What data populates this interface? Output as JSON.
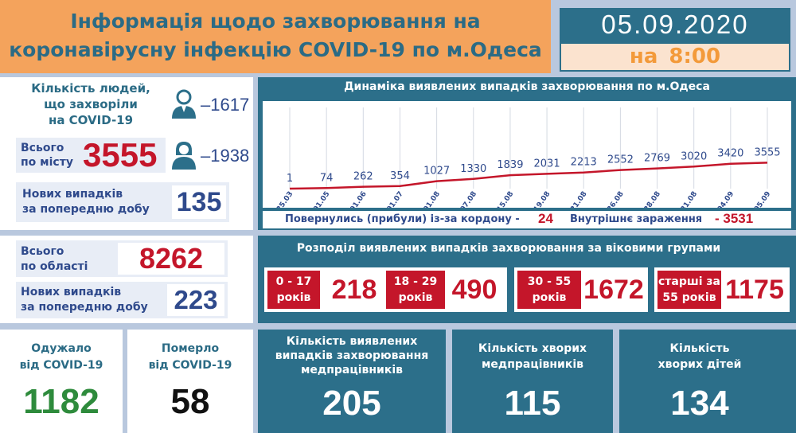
{
  "header": {
    "title_line1": "Інформація щодо захворювання на",
    "title_line2": "коронавірусну інфекцію COVID-19 по м.Одеса",
    "date": "05.09.2020",
    "time_prefix": "на",
    "time": "8:00"
  },
  "city": {
    "sick_label_line1": "Кількість людей,",
    "sick_label_line2": "що захворіли",
    "sick_label_line3": "на COVID-19",
    "male_count": "–1617",
    "female_count": "–1938",
    "total_label_line1": "Всього",
    "total_label_line2": "по місту",
    "total_value": "3555",
    "new_label_line1": "Нових випадків",
    "new_label_line2": "за попередню добу",
    "new_value": "135"
  },
  "region": {
    "total_label_line1": "Всього",
    "total_label_line2": "по області",
    "total_value": "8262",
    "new_label_line1": "Нових випадків",
    "new_label_line2": "за попередню добу",
    "new_value": "223"
  },
  "recovered": {
    "label_line1": "Одужало",
    "label_line2": "від COVID-19",
    "value": "1182"
  },
  "died": {
    "label_line1": "Померло",
    "label_line2": "від COVID-19",
    "value": "58"
  },
  "medical": {
    "detected_line1": "Кількість виявлених",
    "detected_line2": "випадків захворювання",
    "detected_line3": "медпрацівників",
    "detected_value": "205",
    "sick_line1": "Кількість хворих",
    "sick_line2": "медпрацівників",
    "sick_value": "115",
    "children_line1": "Кількість",
    "children_line2": "хворих дітей",
    "children_value": "134"
  },
  "returned": {
    "label": "Повернулись (прибули) із-за кордону -",
    "value": "24",
    "internal_label": "Внутрішнє зараження",
    "internal_value": "- 3531"
  },
  "age_groups": {
    "title": "Розподіл виявлених випадків захворювання за віковими групами",
    "groups": [
      {
        "line1": "0 - 17",
        "line2": "років",
        "value": "218"
      },
      {
        "line1": "18 - 29",
        "line2": "років",
        "value": "490"
      },
      {
        "line1": "30 - 55",
        "line2": "років",
        "value": "1672"
      },
      {
        "line1": "старші за",
        "line2": "55 років",
        "value": "1175"
      }
    ]
  },
  "chart_data": {
    "type": "line",
    "title": "Динаміка виявлених випадків захворювання по м.Одеса",
    "categories": [
      "25.03",
      "01.05",
      "01.06",
      "01.07",
      "01.08",
      "07.08",
      "15.08",
      "19.08",
      "21.08",
      "26.08",
      "28.08",
      "31.08",
      "04.09",
      "05.09"
    ],
    "series": [
      {
        "values": [
          1,
          74,
          262,
          354,
          1027,
          1330,
          1839,
          2031,
          2213,
          2552,
          2769,
          3020,
          3420,
          3555
        ]
      }
    ],
    "ylim": [
      0,
      12000
    ],
    "grid": "vertical",
    "line_color": "#c4162a"
  }
}
